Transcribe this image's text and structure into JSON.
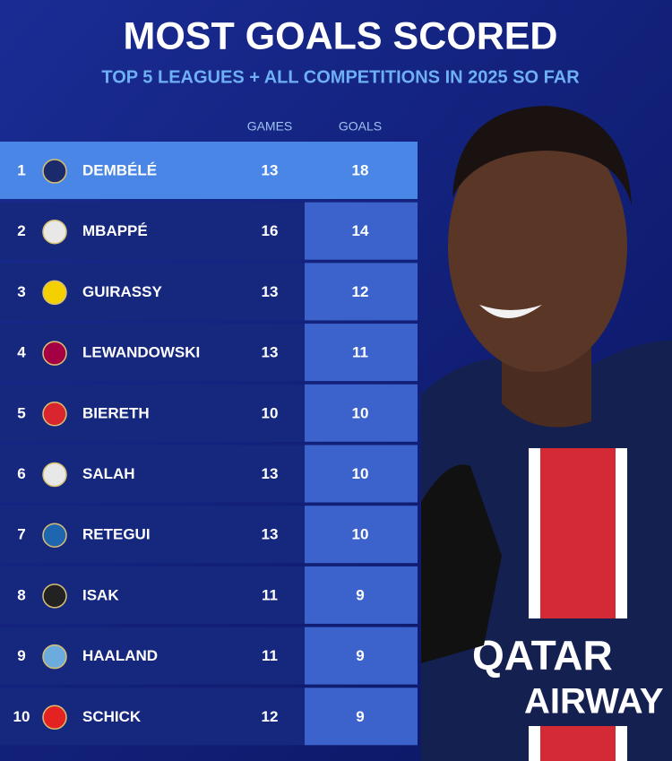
{
  "header": {
    "title": "MOST GOALS SCORED",
    "subtitle": "TOP 5 LEAGUES + ALL COMPETITIONS IN 2025 SO FAR"
  },
  "table": {
    "columns": [
      "GAMES",
      "GOALS"
    ],
    "rows": [
      [
        1,
        "DEMBÉLÉ",
        13,
        18
      ],
      [
        2,
        "MBAPPÉ",
        16,
        14
      ],
      [
        3,
        "GUIRASSY",
        13,
        12
      ],
      [
        4,
        "LEWANDOWSKI",
        13,
        11
      ],
      [
        5,
        "BIERETH",
        10,
        10
      ],
      [
        6,
        "SALAH",
        13,
        10
      ],
      [
        7,
        "RETEGUI",
        13,
        10
      ],
      [
        8,
        "ISAK",
        11,
        9
      ],
      [
        9,
        "HAALAND",
        11,
        9
      ],
      [
        10,
        "SCHICK",
        12,
        9
      ]
    ]
  },
  "photo": {
    "shirt_text": [
      "QATAR",
      "AIRWAY"
    ]
  }
}
